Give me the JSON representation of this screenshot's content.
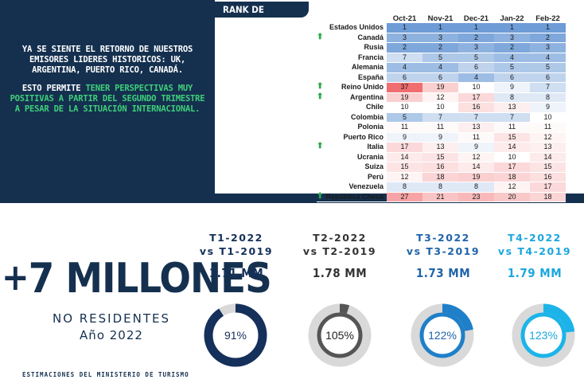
{
  "intro": {
    "line1": "YA SE SIENTE EL RETORNO DE NUESTROS EMISORES LIDERES HISTORICOS: UK, ARGENTINA, PUERTO RICO, CANADÁ.",
    "line2_prefix": "ESTO PERMITE ",
    "line2_highlight": "TENER PERSPECTIVAS MUY POSITIVAS A PARTIR DEL SEGUNDO TRIMESTRE A PESAR DE LA SITUACIÓN INTERNACIONAL."
  },
  "rank": {
    "title": "RANK DE EMISORES",
    "months": [
      "Oct-21",
      "Nov-21",
      "Dec-21",
      "Jan-22",
      "Feb-22"
    ],
    "rows": [
      {
        "country": "Estados Unidos",
        "up": false,
        "values": [
          1,
          1,
          1,
          1,
          1
        ]
      },
      {
        "country": "Canadá",
        "up": true,
        "values": [
          3,
          3,
          2,
          3,
          2
        ]
      },
      {
        "country": "Rusia",
        "up": false,
        "values": [
          2,
          2,
          3,
          2,
          3
        ]
      },
      {
        "country": "Francia",
        "up": false,
        "values": [
          7,
          5,
          5,
          4,
          4
        ]
      },
      {
        "country": "Alemania",
        "up": false,
        "values": [
          4,
          4,
          6,
          5,
          5
        ]
      },
      {
        "country": "España",
        "up": false,
        "values": [
          6,
          6,
          4,
          6,
          6
        ]
      },
      {
        "country": "Reino Unido",
        "up": true,
        "values": [
          37,
          19,
          10,
          9,
          7
        ]
      },
      {
        "country": "Argentina",
        "up": true,
        "values": [
          19,
          12,
          17,
          8,
          8
        ]
      },
      {
        "country": "Chile",
        "up": false,
        "values": [
          10,
          10,
          16,
          13,
          9
        ]
      },
      {
        "country": "Colombia",
        "up": false,
        "values": [
          5,
          7,
          7,
          7,
          10
        ]
      },
      {
        "country": "Polonia",
        "up": false,
        "values": [
          11,
          11,
          13,
          11,
          11
        ]
      },
      {
        "country": "Puerto Rico",
        "up": false,
        "values": [
          9,
          9,
          11,
          15,
          12
        ]
      },
      {
        "country": "Italia",
        "up": true,
        "values": [
          17,
          13,
          9,
          14,
          13
        ]
      },
      {
        "country": "Ucrania",
        "up": false,
        "values": [
          14,
          15,
          12,
          10,
          14
        ]
      },
      {
        "country": "Suiza",
        "up": false,
        "values": [
          15,
          16,
          14,
          17,
          15
        ]
      },
      {
        "country": "Perú",
        "up": false,
        "values": [
          12,
          18,
          19,
          18,
          16
        ]
      },
      {
        "country": "Venezuela",
        "up": false,
        "values": [
          8,
          8,
          8,
          12,
          17
        ]
      },
      {
        "country": "República Checa",
        "up": true,
        "values": [
          27,
          21,
          23,
          20,
          18
        ]
      }
    ]
  },
  "summary": {
    "plus_sign": "+",
    "big_number": "7 MILLONES",
    "sub": "NO RESIDENTES",
    "year": "Año 2022",
    "footnote": "ESTIMACIONES DEL MINISTERIO DE TURISMO"
  },
  "quarters": [
    {
      "title1": "T1-2022",
      "title2": "vs T1-2019",
      "value": "1.71 MM",
      "pct": "91%",
      "pct_value": 91,
      "color": "#15305a",
      "title_color": "#15305a"
    },
    {
      "title1": "T2-2022",
      "title2": "vs T2-2019",
      "value": "1.78 MM",
      "pct": "105%",
      "pct_value": 105,
      "color": "#555555",
      "title_color": "#333333"
    },
    {
      "title1": "T3-2022",
      "title2": "vs T3-2019",
      "value": "1.73 MM",
      "pct": "122%",
      "pct_value": 122,
      "color": "#1f7fc8",
      "title_color": "#1f63a8"
    },
    {
      "title1": "T4-2022",
      "title2": "vs T4-2019",
      "value": "1.79 MM",
      "pct": "123%",
      "pct_value": 123,
      "color": "#1cb4e8",
      "title_color": "#1ca6de"
    }
  ]
}
